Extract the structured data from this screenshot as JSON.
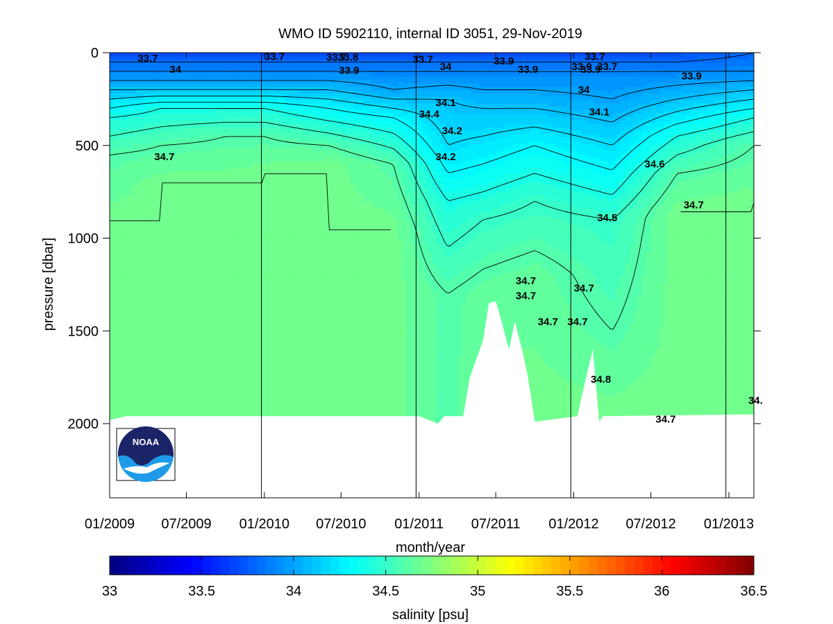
{
  "chart_data": {
    "type": "heatmap",
    "title": "WMO ID 5902110, internal ID 3051, 29-Nov-2019",
    "xlabel": "month/year",
    "ylabel": "pressure [dbar]",
    "x_start": "2009-01",
    "x_end": "2013-03",
    "xticks": [
      {
        "value": "2009-01",
        "label": "01/2009"
      },
      {
        "value": "2009-07",
        "label": "07/2009"
      },
      {
        "value": "2010-01",
        "label": "01/2010"
      },
      {
        "value": "2010-07",
        "label": "07/2010"
      },
      {
        "value": "2011-01",
        "label": "01/2011"
      },
      {
        "value": "2011-07",
        "label": "07/2011"
      },
      {
        "value": "2012-01",
        "label": "01/2012"
      },
      {
        "value": "2012-07",
        "label": "07/2012"
      },
      {
        "value": "2013-01",
        "label": "01/2013"
      }
    ],
    "ylim": [
      0,
      2400
    ],
    "y_inverted": true,
    "yticks": [
      {
        "value": 0,
        "label": "0"
      },
      {
        "value": 500,
        "label": "500"
      },
      {
        "value": 1000,
        "label": "1000"
      },
      {
        "value": 1500,
        "label": "1500"
      },
      {
        "value": 2000,
        "label": "2000"
      }
    ],
    "year_boundaries": [
      "2009-12-25",
      "2010-12-25",
      "2011-12-25",
      "2012-12-25"
    ],
    "colorbar": {
      "label": "salinity [psu]",
      "range": [
        33,
        36.5
      ],
      "colormap": "jet",
      "ticks": [
        {
          "value": 33,
          "label": "33"
        },
        {
          "value": 33.5,
          "label": "33.5"
        },
        {
          "value": 34,
          "label": "34"
        },
        {
          "value": 34.5,
          "label": "34.5"
        },
        {
          "value": 35,
          "label": "35"
        },
        {
          "value": 35.5,
          "label": "35.5"
        },
        {
          "value": 36,
          "label": "36"
        },
        {
          "value": 36.5,
          "label": "36.5"
        }
      ]
    },
    "profile_depth_dbar": 1950,
    "bottom_edge_max": [
      {
        "x": "2009-01-01",
        "p": 1980
      },
      {
        "x": "2009-02-10",
        "p": 1960
      },
      {
        "x": "2011-01-01",
        "p": 1960
      },
      {
        "x": "2011-02-15",
        "p": 2000
      },
      {
        "x": "2011-03-01",
        "p": 1960
      },
      {
        "x": "2011-04-15",
        "p": 1960
      },
      {
        "x": "2011-05-01",
        "p": 1750
      },
      {
        "x": "2011-06-01",
        "p": 1550
      },
      {
        "x": "2011-06-15",
        "p": 1350
      },
      {
        "x": "2011-07-01",
        "p": 1340
      },
      {
        "x": "2011-07-15",
        "p": 1450
      },
      {
        "x": "2011-08-01",
        "p": 1600
      },
      {
        "x": "2011-08-15",
        "p": 1450
      },
      {
        "x": "2011-09-01",
        "p": 1600
      },
      {
        "x": "2011-09-15",
        "p": 1750
      },
      {
        "x": "2011-10-01",
        "p": 1990
      },
      {
        "x": "2012-01-10",
        "p": 1960
      },
      {
        "x": "2012-01-20",
        "p": 1850
      },
      {
        "x": "2012-02-15",
        "p": 1600
      },
      {
        "x": "2012-03-01",
        "p": 1990
      },
      {
        "x": "2012-03-10",
        "p": 1960
      },
      {
        "x": "2013-03-01",
        "p": 1950
      }
    ],
    "profiles": [
      {
        "x": "2009-01-01",
        "p": [
          0,
          50,
          100,
          200,
          350,
          550,
          900,
          1950
        ],
        "s": [
          33.7,
          33.8,
          33.9,
          34.1,
          34.4,
          34.6,
          34.7,
          34.7
        ]
      },
      {
        "x": "2009-05-01",
        "p": [
          0,
          50,
          100,
          200,
          300,
          500,
          700,
          1950
        ],
        "s": [
          33.7,
          33.8,
          33.9,
          34.1,
          34.4,
          34.6,
          34.7,
          34.7
        ]
      },
      {
        "x": "2009-10-01",
        "p": [
          0,
          50,
          100,
          200,
          300,
          450,
          700,
          1950
        ],
        "s": [
          33.7,
          33.8,
          33.9,
          34.1,
          34.4,
          34.6,
          34.7,
          34.7
        ]
      },
      {
        "x": "2010-01-01",
        "p": [
          0,
          50,
          100,
          200,
          300,
          450,
          650,
          1950
        ],
        "s": [
          33.7,
          33.8,
          33.9,
          34.1,
          34.4,
          34.6,
          34.7,
          34.7
        ]
      },
      {
        "x": "2010-06-01",
        "p": [
          0,
          50,
          100,
          200,
          300,
          500,
          600,
          1950
        ],
        "s": [
          33.7,
          33.8,
          33.9,
          34.1,
          34.3,
          34.6,
          34.7,
          34.7
        ]
      },
      {
        "x": "2010-11-01",
        "p": [
          0,
          50,
          100,
          200,
          350,
          600,
          950,
          1950
        ],
        "s": [
          33.7,
          33.8,
          33.9,
          34.0,
          34.3,
          34.6,
          34.7,
          34.7
        ]
      },
      {
        "x": "2011-03-10",
        "p": [
          0,
          100,
          250,
          500,
          800,
          1300,
          1960
        ],
        "s": [
          33.7,
          33.9,
          34.1,
          34.2,
          34.4,
          34.6,
          34.6
        ]
      },
      {
        "x": "2011-06-01",
        "p": [
          0,
          100,
          300,
          600,
          900,
          1300,
          1960
        ],
        "s": [
          33.7,
          33.9,
          34.1,
          34.3,
          34.5,
          34.65,
          34.7
        ]
      },
      {
        "x": "2011-10-01",
        "p": [
          0,
          100,
          300,
          500,
          800,
          1200,
          1960
        ],
        "s": [
          33.7,
          33.9,
          34.1,
          34.3,
          34.5,
          34.65,
          34.7
        ]
      },
      {
        "x": "2012-04-01",
        "p": [
          0,
          100,
          250,
          500,
          900,
          1500,
          1960
        ],
        "s": [
          33.7,
          33.9,
          34.0,
          34.2,
          34.5,
          34.6,
          34.7
        ]
      },
      {
        "x": "2012-09-01",
        "p": [
          0,
          100,
          250,
          450,
          650,
          850,
          1960
        ],
        "s": [
          33.7,
          33.9,
          34.1,
          34.4,
          34.6,
          34.7,
          34.7
        ]
      },
      {
        "x": "2013-03-01",
        "p": [
          0,
          100,
          200,
          350,
          500,
          800,
          1950
        ],
        "s": [
          33.8,
          33.9,
          34.1,
          34.4,
          34.6,
          34.7,
          34.7
        ]
      }
    ],
    "contour_labels": [
      {
        "x": "2009-04-01",
        "p": 30,
        "label": "33.7"
      },
      {
        "x": "2009-06-05",
        "p": 90,
        "label": "34"
      },
      {
        "x": "2009-05-10",
        "p": 560,
        "label": "34.7"
      },
      {
        "x": "2010-01-25",
        "p": 20,
        "label": "33.7"
      },
      {
        "x": "2010-06-20",
        "p": 25,
        "label": "33.7"
      },
      {
        "x": "2010-07-18",
        "p": 25,
        "label": "33.8"
      },
      {
        "x": "2010-07-20",
        "p": 95,
        "label": "33.9"
      },
      {
        "x": "2011-01-10",
        "p": 35,
        "label": "33.7"
      },
      {
        "x": "2011-03-05",
        "p": 75,
        "label": "34"
      },
      {
        "x": "2011-03-05",
        "p": 270,
        "label": "34.1"
      },
      {
        "x": "2011-01-25",
        "p": 330,
        "label": "34.4"
      },
      {
        "x": "2011-03-20",
        "p": 420,
        "label": "34.2"
      },
      {
        "x": "2011-03-05",
        "p": 560,
        "label": "34.2"
      },
      {
        "x": "2011-07-20",
        "p": 45,
        "label": "33.9"
      },
      {
        "x": "2011-09-15",
        "p": 90,
        "label": "33.9"
      },
      {
        "x": "2012-01-20",
        "p": 75,
        "label": "33.9"
      },
      {
        "x": "2012-02-10",
        "p": 90,
        "label": "33.9"
      },
      {
        "x": "2012-02-20",
        "p": 20,
        "label": "33.7"
      },
      {
        "x": "2012-03-20",
        "p": 75,
        "label": "33.7"
      },
      {
        "x": "2012-01-25",
        "p": 200,
        "label": "34"
      },
      {
        "x": "2012-03-01",
        "p": 320,
        "label": "34.1"
      },
      {
        "x": "2012-10-05",
        "p": 125,
        "label": "33.9"
      },
      {
        "x": "2012-07-10",
        "p": 600,
        "label": "34.6"
      },
      {
        "x": "2012-10-10",
        "p": 820,
        "label": "34.7"
      },
      {
        "x": "2012-03-20",
        "p": 890,
        "label": "34.5"
      },
      {
        "x": "2011-09-10",
        "p": 1230,
        "label": "34.7"
      },
      {
        "x": "2011-09-10",
        "p": 1310,
        "label": "34.7"
      },
      {
        "x": "2011-11-01",
        "p": 1450,
        "label": "34.7"
      },
      {
        "x": "2012-01-10",
        "p": 1450,
        "label": "34.7"
      },
      {
        "x": "2012-01-25",
        "p": 1270,
        "label": "34.7"
      },
      {
        "x": "2012-03-05",
        "p": 1760,
        "label": "34.8"
      },
      {
        "x": "2012-08-05",
        "p": 1975,
        "label": "34.7"
      },
      {
        "x": "2013-03-05",
        "p": 1875,
        "label": "34."
      }
    ]
  },
  "logo": {
    "text": "NOAA",
    "dark": "#1c2468",
    "light": "#1e9be8"
  }
}
